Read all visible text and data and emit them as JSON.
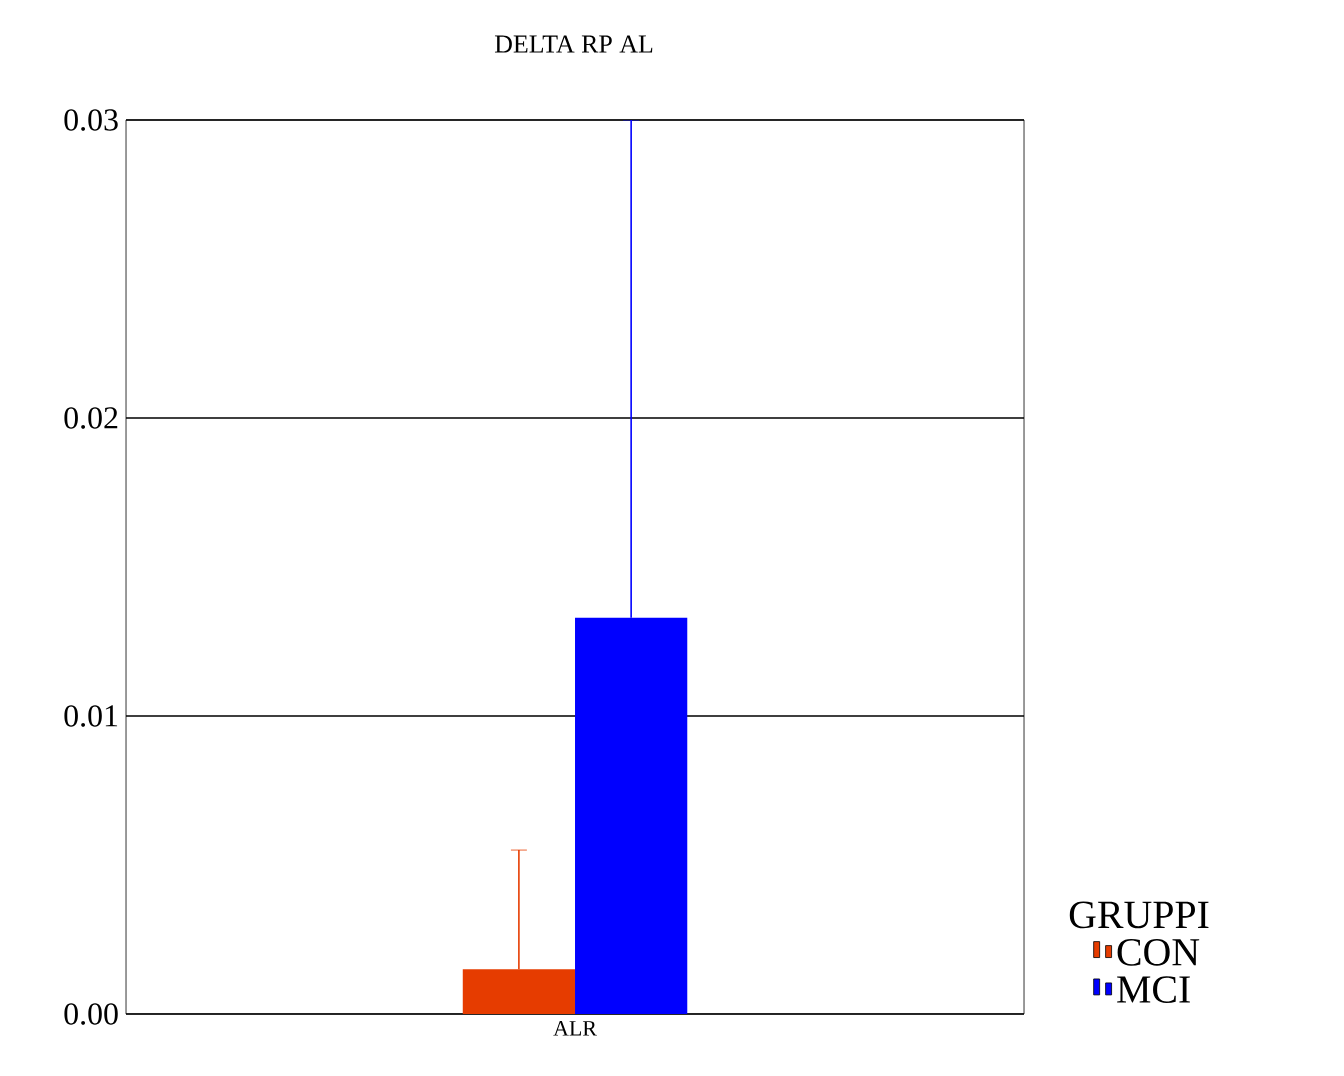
{
  "chart_data": {
    "type": "bar",
    "title": "DELTA RP AL",
    "legend_title": "GRUPPI",
    "categories": [
      "ALR"
    ],
    "series": [
      {
        "name": "CON",
        "color": "#e63c00",
        "values": [
          0.0015
        ],
        "errors": [
          [
            0.0015,
            0.0055
          ]
        ]
      },
      {
        "name": "MCI",
        "color": "#0000ff",
        "values": [
          0.0133
        ],
        "errors": [
          [
            0.0133,
            0.03
          ]
        ]
      }
    ],
    "ylim": [
      0,
      0.03
    ],
    "yticks": [
      {
        "value": 0,
        "label": "0.00"
      },
      {
        "value": 0.01,
        "label": "0.01"
      },
      {
        "value": 0.02,
        "label": "0.02"
      },
      {
        "value": 0.03,
        "label": "0.03"
      }
    ],
    "grid": "y",
    "legend": "right"
  }
}
